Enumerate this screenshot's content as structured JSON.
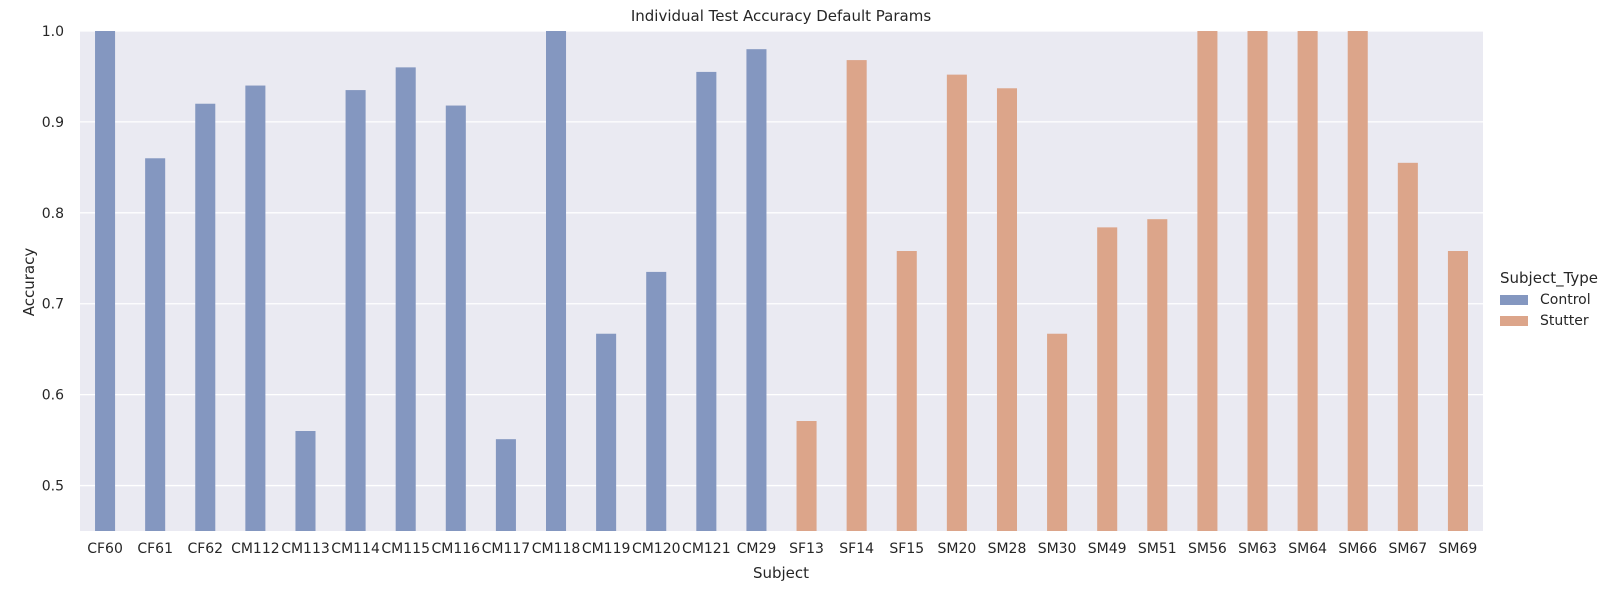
{
  "chart_data": {
    "type": "bar",
    "title": "Individual Test Accuracy Default Params",
    "xlabel": "Subject",
    "ylabel": "Accuracy",
    "ylim": [
      0.45,
      1.0
    ],
    "yticks": [
      "0.5",
      "0.6",
      "0.7",
      "0.8",
      "0.9",
      "1.0"
    ],
    "grid": true,
    "legend": {
      "title": "Subject_Type",
      "position": "right",
      "entries": [
        "Control",
        "Stutter"
      ]
    },
    "colors": {
      "Control": "#8497c0",
      "Stutter": "#dca58a",
      "background": "#eaeaf2",
      "grid": "#ffffff"
    },
    "categories": [
      "CF60",
      "CF61",
      "CF62",
      "CM112",
      "CM113",
      "CM114",
      "CM115",
      "CM116",
      "CM117",
      "CM118",
      "CM119",
      "CM120",
      "CM121",
      "CM29",
      "SF13",
      "SF14",
      "SF15",
      "SM20",
      "SM28",
      "SM30",
      "SM49",
      "SM51",
      "SM56",
      "SM63",
      "SM64",
      "SM66",
      "SM67",
      "SM69"
    ],
    "series": [
      {
        "name": "Control",
        "values": [
          1.0,
          0.86,
          0.92,
          0.94,
          0.56,
          0.935,
          0.96,
          0.918,
          0.551,
          1.0,
          0.667,
          0.735,
          0.955,
          0.98,
          null,
          null,
          null,
          null,
          null,
          null,
          null,
          null,
          null,
          null,
          null,
          null,
          null,
          null
        ]
      },
      {
        "name": "Stutter",
        "values": [
          null,
          null,
          null,
          null,
          null,
          null,
          null,
          null,
          null,
          null,
          null,
          null,
          null,
          null,
          0.571,
          0.968,
          0.758,
          0.952,
          0.937,
          0.667,
          0.784,
          0.793,
          1.0,
          1.0,
          1.0,
          1.0,
          0.855,
          0.758
        ]
      }
    ]
  }
}
